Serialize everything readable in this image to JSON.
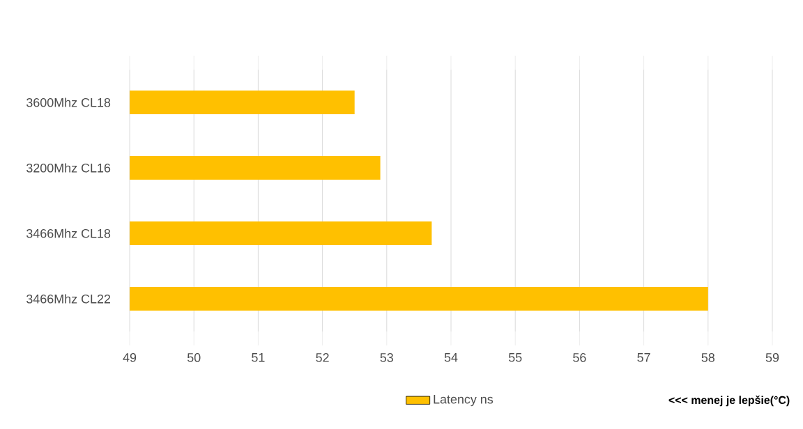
{
  "chart_data": {
    "type": "bar",
    "orientation": "horizontal",
    "categories": [
      "3600Mhz CL18",
      "3200Mhz CL16",
      "3466Mhz CL18",
      "3466Mhz CL22"
    ],
    "series": [
      {
        "name": "Latency ns",
        "color": "#ffc000",
        "values": [
          52.5,
          52.9,
          53.7,
          58.0
        ]
      }
    ],
    "xlim": [
      49,
      59
    ],
    "xticks": [
      49,
      50,
      51,
      52,
      53,
      54,
      55,
      56,
      57,
      58,
      59
    ],
    "grid": "x",
    "legend": "bottom",
    "annotations": [
      "<<< menej je lepšie(°C)"
    ]
  }
}
